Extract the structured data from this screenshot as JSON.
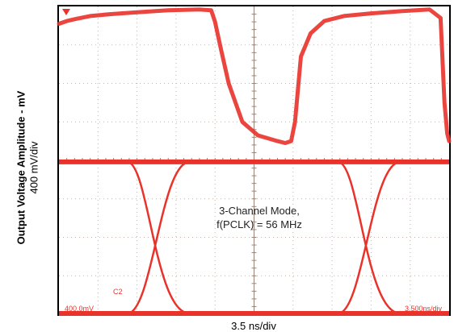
{
  "chart_data": {
    "type": "line",
    "title": "",
    "ylabel": "Output Voltage Amplitude - mV",
    "y_scale_label": "400 mV/div",
    "xlabel": "3.5 ns/div",
    "annotation_line1": "3-Channel Mode,",
    "annotation_line2": "f(PCLK) = 56 MHz",
    "scope_readout_left": "400.0mV",
    "scope_readout_right": "3.500ns/div",
    "channel_marker": "C2",
    "grid": true,
    "divisions": {
      "x": 10,
      "y": 8
    },
    "colors": {
      "trace": "#e8322a",
      "grid": "#c9b3a6",
      "frame": "#000000",
      "background": "#ffffff"
    },
    "series": [
      {
        "x_div": [
          0.0,
          0.2,
          0.45,
          0.8,
          1.3,
          2.0,
          2.8,
          3.6,
          3.9,
          4.0,
          4.15,
          4.35,
          4.7,
          5.1,
          5.6,
          5.8,
          5.95,
          6.05,
          6.2,
          6.45,
          6.8,
          7.3,
          8.0,
          8.8,
          9.5,
          9.78,
          9.88,
          9.95,
          10.0
        ],
        "y_div": [
          7.55,
          7.62,
          7.68,
          7.75,
          7.8,
          7.85,
          7.9,
          7.92,
          7.9,
          7.6,
          6.9,
          6.0,
          5.0,
          4.65,
          4.5,
          4.45,
          4.5,
          5.0,
          6.7,
          7.3,
          7.62,
          7.75,
          7.82,
          7.88,
          7.92,
          7.7,
          5.5,
          4.7,
          4.5
        ]
      },
      {
        "eye_high_div": 3.96,
        "eye_low_div": 0.02,
        "crossings_div": [
          2.55,
          7.95
        ],
        "transition_width_div": 1.6
      }
    ]
  }
}
